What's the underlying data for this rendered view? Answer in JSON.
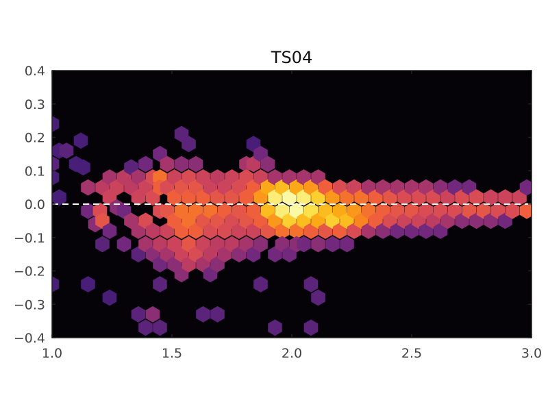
{
  "chart_data": {
    "type": "heatmap",
    "subtype": "hexbin",
    "title": "TS04",
    "xlabel": "",
    "ylabel": "",
    "xlim": [
      1.0,
      3.0
    ],
    "ylim": [
      -0.4,
      0.4
    ],
    "x_ticks": [
      1.0,
      1.5,
      2.0,
      2.5,
      3.0
    ],
    "x_tick_labels": [
      "1.0",
      "1.5",
      "2.0",
      "2.5",
      "3.0"
    ],
    "y_ticks": [
      0.4,
      0.3,
      0.2,
      0.1,
      0.0,
      -0.1,
      -0.2,
      -0.3,
      -0.4
    ],
    "y_tick_labels": [
      "0.4",
      "0.3",
      "0.2",
      "0.1",
      "0.0",
      "−0.1",
      "−0.2",
      "−0.3",
      "−0.4"
    ],
    "grid": false,
    "background_color": "#050308",
    "colormap": "inferno",
    "colormap_stops": [
      "#2a1766",
      "#4c1f7a",
      "#7b2a7c",
      "#b73a63",
      "#d84b55",
      "#f0603a",
      "#fa8c1c",
      "#fcb215",
      "#fcde40",
      "#fcf9a6"
    ],
    "reference_line": {
      "y": 0.0,
      "style": "dashed",
      "color": "#ffffff"
    },
    "hex_size_x": 0.034,
    "hex_size_y": 0.0245,
    "bins": [
      {
        "x": 1.0,
        "y": 0.24,
        "v": 0.1
      },
      {
        "x": 1.0,
        "y": 0.12,
        "v": 0.15
      },
      {
        "x": 1.0,
        "y": 0.08,
        "v": 0.1
      },
      {
        "x": 1.03,
        "y": 0.02,
        "v": 0.1
      },
      {
        "x": 1.0,
        "y": -0.24,
        "v": 0.1
      },
      {
        "x": 1.03,
        "y": 0.16,
        "v": 0.1
      },
      {
        "x": 1.06,
        "y": 0.16,
        "v": 0.15
      },
      {
        "x": 1.12,
        "y": 0.19,
        "v": 0.1
      },
      {
        "x": 1.1,
        "y": 0.12,
        "v": 0.1
      },
      {
        "x": 1.13,
        "y": 0.11,
        "v": 0.1
      },
      {
        "x": 1.15,
        "y": 0.05,
        "v": 0.3
      },
      {
        "x": 1.15,
        "y": -0.02,
        "v": 0.2
      },
      {
        "x": 1.18,
        "y": -0.06,
        "v": 0.25
      },
      {
        "x": 1.21,
        "y": 0.05,
        "v": 0.35
      },
      {
        "x": 1.2,
        "y": -0.02,
        "v": 0.45
      },
      {
        "x": 1.21,
        "y": -0.05,
        "v": 0.5
      },
      {
        "x": 1.24,
        "y": 0.08,
        "v": 0.3
      },
      {
        "x": 1.24,
        "y": 0.02,
        "v": 0.4
      },
      {
        "x": 1.24,
        "y": -0.08,
        "v": 0.2
      },
      {
        "x": 1.27,
        "y": 0.05,
        "v": 0.4
      },
      {
        "x": 1.27,
        "y": -0.01,
        "v": 0.25
      },
      {
        "x": 1.21,
        "y": -0.12,
        "v": 0.15
      },
      {
        "x": 1.15,
        "y": -0.24,
        "v": 0.1
      },
      {
        "x": 1.24,
        "y": -0.28,
        "v": 0.1
      },
      {
        "x": 1.3,
        "y": 0.08,
        "v": 0.35
      },
      {
        "x": 1.3,
        "y": -0.02,
        "v": 0.2
      },
      {
        "x": 1.3,
        "y": -0.12,
        "v": 0.2
      },
      {
        "x": 1.33,
        "y": 0.11,
        "v": 0.15
      },
      {
        "x": 1.33,
        "y": 0.05,
        "v": 0.35
      },
      {
        "x": 1.33,
        "y": -0.05,
        "v": 0.3
      },
      {
        "x": 1.36,
        "y": 0.08,
        "v": 0.3
      },
      {
        "x": 1.36,
        "y": 0.02,
        "v": 0.4
      },
      {
        "x": 1.36,
        "y": -0.08,
        "v": 0.3
      },
      {
        "x": 1.36,
        "y": -0.15,
        "v": 0.15
      },
      {
        "x": 1.39,
        "y": 0.12,
        "v": 0.2
      },
      {
        "x": 1.39,
        "y": 0.05,
        "v": 0.4
      },
      {
        "x": 1.39,
        "y": -0.05,
        "v": 0.45
      },
      {
        "x": 1.39,
        "y": -0.12,
        "v": 0.3
      },
      {
        "x": 1.42,
        "y": 0.08,
        "v": 0.45
      },
      {
        "x": 1.42,
        "y": 0.02,
        "v": 0.45
      },
      {
        "x": 1.42,
        "y": -0.08,
        "v": 0.35
      },
      {
        "x": 1.42,
        "y": -0.15,
        "v": 0.25
      },
      {
        "x": 1.45,
        "y": 0.15,
        "v": 0.2
      },
      {
        "x": 1.45,
        "y": 0.08,
        "v": 0.6
      },
      {
        "x": 1.45,
        "y": 0.05,
        "v": 0.55
      },
      {
        "x": 1.45,
        "y": -0.02,
        "v": 0.45
      },
      {
        "x": 1.45,
        "y": -0.12,
        "v": 0.35
      },
      {
        "x": 1.45,
        "y": -0.18,
        "v": 0.2
      },
      {
        "x": 1.45,
        "y": -0.24,
        "v": 0.15
      },
      {
        "x": 1.42,
        "y": -0.33,
        "v": 0.25
      },
      {
        "x": 1.36,
        "y": -0.33,
        "v": 0.15
      },
      {
        "x": 1.39,
        "y": -0.37,
        "v": 0.15
      },
      {
        "x": 1.45,
        "y": -0.37,
        "v": 0.15
      },
      {
        "x": 1.48,
        "y": 0.12,
        "v": 0.3
      },
      {
        "x": 1.48,
        "y": 0.05,
        "v": 0.45
      },
      {
        "x": 1.48,
        "y": -0.02,
        "v": 0.5
      },
      {
        "x": 1.48,
        "y": -0.08,
        "v": 0.4
      },
      {
        "x": 1.48,
        "y": -0.15,
        "v": 0.3
      },
      {
        "x": 1.51,
        "y": 0.08,
        "v": 0.4
      },
      {
        "x": 1.51,
        "y": 0.02,
        "v": 0.55
      },
      {
        "x": 1.51,
        "y": -0.05,
        "v": 0.55
      },
      {
        "x": 1.51,
        "y": -0.12,
        "v": 0.4
      },
      {
        "x": 1.51,
        "y": -0.18,
        "v": 0.25
      },
      {
        "x": 1.54,
        "y": 0.21,
        "v": 0.15
      },
      {
        "x": 1.54,
        "y": 0.12,
        "v": 0.25
      },
      {
        "x": 1.54,
        "y": 0.05,
        "v": 0.5
      },
      {
        "x": 1.54,
        "y": -0.02,
        "v": 0.6
      },
      {
        "x": 1.54,
        "y": -0.08,
        "v": 0.55
      },
      {
        "x": 1.54,
        "y": -0.15,
        "v": 0.4
      },
      {
        "x": 1.54,
        "y": -0.21,
        "v": 0.25
      },
      {
        "x": 1.57,
        "y": 0.18,
        "v": 0.15
      },
      {
        "x": 1.57,
        "y": 0.08,
        "v": 0.45
      },
      {
        "x": 1.57,
        "y": 0.02,
        "v": 0.55
      },
      {
        "x": 1.57,
        "y": -0.05,
        "v": 0.6
      },
      {
        "x": 1.57,
        "y": -0.12,
        "v": 0.5
      },
      {
        "x": 1.57,
        "y": -0.18,
        "v": 0.35
      },
      {
        "x": 1.6,
        "y": 0.12,
        "v": 0.25
      },
      {
        "x": 1.6,
        "y": 0.05,
        "v": 0.5
      },
      {
        "x": 1.6,
        "y": -0.02,
        "v": 0.6
      },
      {
        "x": 1.6,
        "y": -0.08,
        "v": 0.55
      },
      {
        "x": 1.6,
        "y": -0.15,
        "v": 0.45
      },
      {
        "x": 1.63,
        "y": 0.08,
        "v": 0.4
      },
      {
        "x": 1.63,
        "y": 0.02,
        "v": 0.55
      },
      {
        "x": 1.63,
        "y": -0.05,
        "v": 0.5
      },
      {
        "x": 1.63,
        "y": -0.12,
        "v": 0.4
      },
      {
        "x": 1.63,
        "y": -0.18,
        "v": 0.3
      },
      {
        "x": 1.63,
        "y": -0.33,
        "v": 0.15
      },
      {
        "x": 1.66,
        "y": 0.05,
        "v": 0.4
      },
      {
        "x": 1.66,
        "y": -0.02,
        "v": 0.6
      },
      {
        "x": 1.66,
        "y": -0.08,
        "v": 0.45
      },
      {
        "x": 1.66,
        "y": -0.15,
        "v": 0.35
      },
      {
        "x": 1.66,
        "y": -0.21,
        "v": 0.2
      },
      {
        "x": 1.69,
        "y": 0.08,
        "v": 0.35
      },
      {
        "x": 1.69,
        "y": 0.02,
        "v": 0.5
      },
      {
        "x": 1.69,
        "y": -0.05,
        "v": 0.5
      },
      {
        "x": 1.69,
        "y": -0.12,
        "v": 0.35
      },
      {
        "x": 1.69,
        "y": -0.18,
        "v": 0.25
      },
      {
        "x": 1.69,
        "y": -0.33,
        "v": 0.15
      },
      {
        "x": 1.72,
        "y": 0.05,
        "v": 0.4
      },
      {
        "x": 1.72,
        "y": -0.02,
        "v": 0.55
      },
      {
        "x": 1.72,
        "y": -0.08,
        "v": 0.45
      },
      {
        "x": 1.72,
        "y": -0.15,
        "v": 0.3
      },
      {
        "x": 1.75,
        "y": 0.08,
        "v": 0.4
      },
      {
        "x": 1.75,
        "y": 0.02,
        "v": 0.5
      },
      {
        "x": 1.75,
        "y": -0.05,
        "v": 0.45
      },
      {
        "x": 1.75,
        "y": -0.12,
        "v": 0.35
      },
      {
        "x": 1.78,
        "y": 0.05,
        "v": 0.45
      },
      {
        "x": 1.78,
        "y": -0.02,
        "v": 0.5
      },
      {
        "x": 1.78,
        "y": -0.08,
        "v": 0.4
      },
      {
        "x": 1.78,
        "y": -0.15,
        "v": 0.25
      },
      {
        "x": 1.81,
        "y": 0.12,
        "v": 0.3
      },
      {
        "x": 1.81,
        "y": 0.08,
        "v": 0.45
      },
      {
        "x": 1.81,
        "y": 0.02,
        "v": 0.55
      },
      {
        "x": 1.81,
        "y": -0.05,
        "v": 0.5
      },
      {
        "x": 1.81,
        "y": -0.12,
        "v": 0.3
      },
      {
        "x": 1.84,
        "y": 0.18,
        "v": 0.1
      },
      {
        "x": 1.84,
        "y": 0.12,
        "v": 0.35
      },
      {
        "x": 1.84,
        "y": 0.05,
        "v": 0.55
      },
      {
        "x": 1.84,
        "y": -0.02,
        "v": 0.55
      },
      {
        "x": 1.84,
        "y": -0.08,
        "v": 0.4
      },
      {
        "x": 1.84,
        "y": -0.15,
        "v": 0.2
      },
      {
        "x": 1.87,
        "y": 0.15,
        "v": 0.2
      },
      {
        "x": 1.87,
        "y": 0.08,
        "v": 0.4
      },
      {
        "x": 1.87,
        "y": 0.02,
        "v": 0.7
      },
      {
        "x": 1.87,
        "y": -0.05,
        "v": 0.55
      },
      {
        "x": 1.87,
        "y": -0.12,
        "v": 0.25
      },
      {
        "x": 1.87,
        "y": -0.24,
        "v": 0.15
      },
      {
        "x": 1.9,
        "y": 0.12,
        "v": 0.25
      },
      {
        "x": 1.9,
        "y": 0.05,
        "v": 0.75
      },
      {
        "x": 1.9,
        "y": -0.02,
        "v": 0.8
      },
      {
        "x": 1.9,
        "y": -0.08,
        "v": 0.5
      },
      {
        "x": 1.93,
        "y": 0.08,
        "v": 0.3
      },
      {
        "x": 1.93,
        "y": 0.02,
        "v": 0.95
      },
      {
        "x": 1.93,
        "y": -0.05,
        "v": 0.7
      },
      {
        "x": 1.93,
        "y": -0.15,
        "v": 0.2
      },
      {
        "x": 1.93,
        "y": -0.37,
        "v": 0.15
      },
      {
        "x": 1.96,
        "y": 0.05,
        "v": 0.8
      },
      {
        "x": 1.96,
        "y": -0.02,
        "v": 0.95
      },
      {
        "x": 1.96,
        "y": -0.08,
        "v": 0.6
      },
      {
        "x": 1.96,
        "y": -0.12,
        "v": 0.25
      },
      {
        "x": 1.99,
        "y": 0.08,
        "v": 0.3
      },
      {
        "x": 1.99,
        "y": 0.02,
        "v": 1.0
      },
      {
        "x": 1.99,
        "y": -0.05,
        "v": 0.85
      },
      {
        "x": 1.99,
        "y": -0.15,
        "v": 0.2
      },
      {
        "x": 2.02,
        "y": 0.05,
        "v": 0.75
      },
      {
        "x": 2.02,
        "y": -0.02,
        "v": 1.0
      },
      {
        "x": 2.02,
        "y": -0.08,
        "v": 0.6
      },
      {
        "x": 2.02,
        "y": -0.12,
        "v": 0.25
      },
      {
        "x": 2.05,
        "y": 0.08,
        "v": 0.3
      },
      {
        "x": 2.05,
        "y": 0.02,
        "v": 0.95
      },
      {
        "x": 2.05,
        "y": -0.05,
        "v": 0.8
      },
      {
        "x": 2.05,
        "y": -0.12,
        "v": 0.2
      },
      {
        "x": 2.08,
        "y": 0.05,
        "v": 0.7
      },
      {
        "x": 2.08,
        "y": -0.02,
        "v": 0.9
      },
      {
        "x": 2.08,
        "y": -0.08,
        "v": 0.55
      },
      {
        "x": 2.08,
        "y": -0.24,
        "v": 0.15
      },
      {
        "x": 2.08,
        "y": -0.37,
        "v": 0.15
      },
      {
        "x": 2.11,
        "y": 0.08,
        "v": 0.3
      },
      {
        "x": 2.11,
        "y": 0.02,
        "v": 0.85
      },
      {
        "x": 2.11,
        "y": -0.05,
        "v": 0.75
      },
      {
        "x": 2.11,
        "y": -0.12,
        "v": 0.25
      },
      {
        "x": 2.11,
        "y": -0.28,
        "v": 0.15
      },
      {
        "x": 2.14,
        "y": 0.05,
        "v": 0.55
      },
      {
        "x": 2.14,
        "y": -0.02,
        "v": 0.8
      },
      {
        "x": 2.14,
        "y": -0.08,
        "v": 0.5
      },
      {
        "x": 2.17,
        "y": 0.02,
        "v": 0.7
      },
      {
        "x": 2.17,
        "y": -0.05,
        "v": 0.85
      },
      {
        "x": 2.17,
        "y": -0.12,
        "v": 0.2
      },
      {
        "x": 2.2,
        "y": 0.05,
        "v": 0.45
      },
      {
        "x": 2.2,
        "y": -0.02,
        "v": 0.75
      },
      {
        "x": 2.2,
        "y": -0.08,
        "v": 0.55
      },
      {
        "x": 2.23,
        "y": 0.02,
        "v": 0.6
      },
      {
        "x": 2.23,
        "y": -0.05,
        "v": 0.8
      },
      {
        "x": 2.23,
        "y": -0.12,
        "v": 0.2
      },
      {
        "x": 2.26,
        "y": 0.05,
        "v": 0.4
      },
      {
        "x": 2.26,
        "y": -0.02,
        "v": 0.7
      },
      {
        "x": 2.26,
        "y": -0.08,
        "v": 0.45
      },
      {
        "x": 2.29,
        "y": 0.02,
        "v": 0.6
      },
      {
        "x": 2.29,
        "y": -0.05,
        "v": 0.65
      },
      {
        "x": 2.32,
        "y": 0.05,
        "v": 0.3
      },
      {
        "x": 2.32,
        "y": -0.02,
        "v": 0.6
      },
      {
        "x": 2.32,
        "y": -0.08,
        "v": 0.3
      },
      {
        "x": 2.35,
        "y": 0.02,
        "v": 0.55
      },
      {
        "x": 2.35,
        "y": -0.05,
        "v": 0.55
      },
      {
        "x": 2.38,
        "y": 0.05,
        "v": 0.3
      },
      {
        "x": 2.38,
        "y": -0.02,
        "v": 0.55
      },
      {
        "x": 2.38,
        "y": -0.08,
        "v": 0.25
      },
      {
        "x": 2.41,
        "y": 0.02,
        "v": 0.5
      },
      {
        "x": 2.41,
        "y": -0.05,
        "v": 0.45
      },
      {
        "x": 2.44,
        "y": 0.05,
        "v": 0.3
      },
      {
        "x": 2.44,
        "y": -0.02,
        "v": 0.5
      },
      {
        "x": 2.44,
        "y": -0.08,
        "v": 0.2
      },
      {
        "x": 2.47,
        "y": 0.02,
        "v": 0.45
      },
      {
        "x": 2.47,
        "y": -0.05,
        "v": 0.4
      },
      {
        "x": 2.5,
        "y": 0.05,
        "v": 0.3
      },
      {
        "x": 2.5,
        "y": -0.02,
        "v": 0.5
      },
      {
        "x": 2.5,
        "y": -0.08,
        "v": 0.2
      },
      {
        "x": 2.53,
        "y": 0.02,
        "v": 0.45
      },
      {
        "x": 2.53,
        "y": -0.05,
        "v": 0.4
      },
      {
        "x": 2.56,
        "y": 0.05,
        "v": 0.3
      },
      {
        "x": 2.56,
        "y": -0.02,
        "v": 0.45
      },
      {
        "x": 2.56,
        "y": -0.08,
        "v": 0.2
      },
      {
        "x": 2.59,
        "y": 0.02,
        "v": 0.45
      },
      {
        "x": 2.59,
        "y": -0.05,
        "v": 0.35
      },
      {
        "x": 2.62,
        "y": 0.05,
        "v": 0.25
      },
      {
        "x": 2.62,
        "y": -0.02,
        "v": 0.45
      },
      {
        "x": 2.62,
        "y": -0.08,
        "v": 0.2
      },
      {
        "x": 2.65,
        "y": 0.02,
        "v": 0.4
      },
      {
        "x": 2.65,
        "y": -0.05,
        "v": 0.3
      },
      {
        "x": 2.68,
        "y": 0.05,
        "v": 0.2
      },
      {
        "x": 2.68,
        "y": -0.02,
        "v": 0.45
      },
      {
        "x": 2.71,
        "y": 0.02,
        "v": 0.45
      },
      {
        "x": 2.71,
        "y": -0.05,
        "v": 0.25
      },
      {
        "x": 2.74,
        "y": 0.05,
        "v": 0.2
      },
      {
        "x": 2.74,
        "y": -0.02,
        "v": 0.5
      },
      {
        "x": 2.77,
        "y": 0.02,
        "v": 0.45
      },
      {
        "x": 2.77,
        "y": -0.05,
        "v": 0.25
      },
      {
        "x": 2.8,
        "y": -0.02,
        "v": 0.5
      },
      {
        "x": 2.83,
        "y": 0.02,
        "v": 0.4
      },
      {
        "x": 2.83,
        "y": -0.05,
        "v": 0.25
      },
      {
        "x": 2.86,
        "y": -0.02,
        "v": 0.45
      },
      {
        "x": 2.89,
        "y": 0.02,
        "v": 0.4
      },
      {
        "x": 2.89,
        "y": -0.05,
        "v": 0.2
      },
      {
        "x": 2.92,
        "y": -0.02,
        "v": 0.45
      },
      {
        "x": 2.95,
        "y": 0.02,
        "v": 0.4
      },
      {
        "x": 2.98,
        "y": -0.02,
        "v": 0.55
      },
      {
        "x": 2.98,
        "y": 0.05,
        "v": 0.2
      }
    ]
  }
}
